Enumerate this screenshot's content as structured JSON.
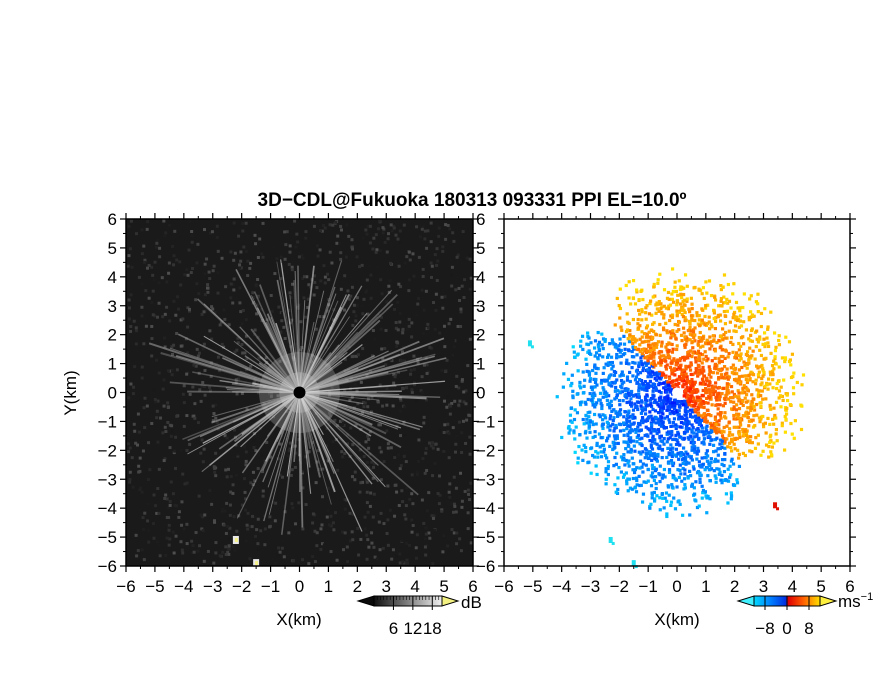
{
  "figure": {
    "title": "3D−CDL@Fukuoka 180313 093331 PPI EL=10.0º"
  },
  "chart_data": [
    {
      "type": "heatmap",
      "panel": "left",
      "variable": "reflectivity / signal strength",
      "colormap": "grayscale",
      "xlabel": "X(km)",
      "ylabel": "Y(km)",
      "xlim": [
        -6,
        6
      ],
      "ylim": [
        -6,
        6
      ],
      "x_ticks": [
        "−6",
        "−5",
        "−4",
        "−3",
        "−2",
        "−1",
        "0",
        "1",
        "2",
        "3",
        "4",
        "5",
        "6"
      ],
      "y_ticks": [
        "6",
        "5",
        "4",
        "3",
        "2",
        "1",
        "0",
        "−1",
        "−2",
        "−3",
        "−4",
        "−5",
        "−6"
      ],
      "radar_center": [
        0,
        0
      ],
      "pattern": "radial streaks of higher signal around the radar site, weakening with range",
      "isolated_targets": [
        {
          "x": -2.2,
          "y": -5.1
        },
        {
          "x": -1.5,
          "y": -5.9
        }
      ],
      "colorbar": {
        "unit": "dB",
        "tick_labels": [
          "6",
          "12",
          "18"
        ],
        "tick_values": [
          6,
          12,
          18
        ],
        "range": [
          0,
          21
        ],
        "extend": "both",
        "colors": [
          "#0a0a0a",
          "#f0f0f0"
        ],
        "extend_high_color": "#f2f080"
      }
    },
    {
      "type": "heatmap",
      "panel": "right",
      "variable": "Doppler radial velocity",
      "colormap": "diverging blue-red-yellow",
      "xlabel": "X(km)",
      "ylabel": "",
      "xlim": [
        -6,
        6
      ],
      "ylim": [
        -6,
        6
      ],
      "x_ticks": [
        "−6",
        "−5",
        "−4",
        "−3",
        "−2",
        "−1",
        "0",
        "1",
        "2",
        "3",
        "4",
        "5",
        "6"
      ],
      "y_ticks": [
        "6",
        "5",
        "4",
        "3",
        "2",
        "1",
        "0",
        "−1",
        "−2",
        "−3",
        "−4",
        "−5",
        "−6"
      ],
      "pattern": "receding (positive) velocities to the north-east, approaching (negative) velocities to the south-west",
      "positive_region_extent_km": {
        "north": 4.1,
        "east": 4.3
      },
      "negative_region_extent_km": {
        "west": -4.3,
        "south": -3.8
      },
      "isolated_targets": [
        {
          "x": -2.3,
          "y": -5.1,
          "sign": "negative"
        },
        {
          "x": -1.5,
          "y": -5.9,
          "sign": "negative"
        },
        {
          "x": -5.1,
          "y": 1.7,
          "sign": "negative"
        },
        {
          "x": 3.4,
          "y": -3.9,
          "sign": "positive"
        }
      ],
      "colorbar": {
        "unit": "ms",
        "unit_exponent": "−1",
        "tick_labels": [
          "−8",
          "0",
          "8"
        ],
        "tick_values": [
          -8,
          0,
          8
        ],
        "range": [
          -12,
          12
        ],
        "extend": "both",
        "colors": [
          "#00e0ff",
          "#0040ff",
          "#ff0000",
          "#ffe000"
        ]
      }
    }
  ]
}
